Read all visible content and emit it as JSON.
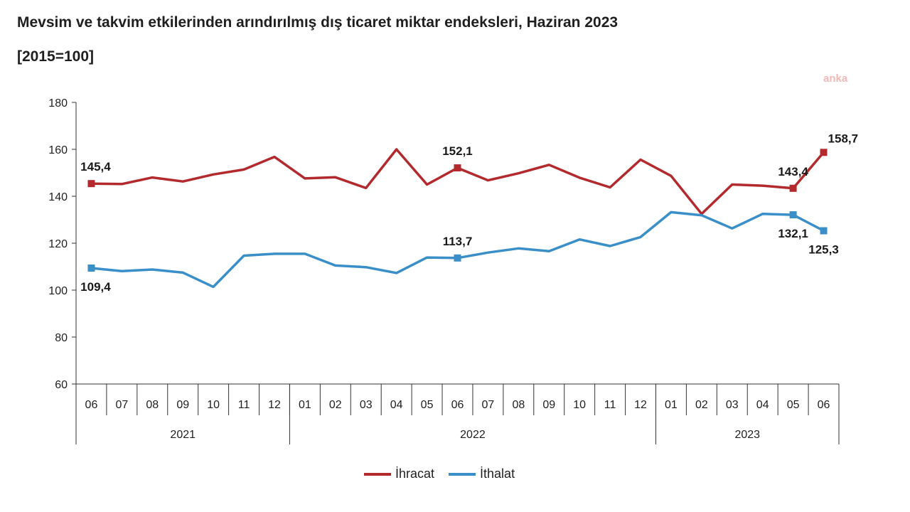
{
  "header": {
    "title": "Mevsim ve takvim etkilerinden arındırılmış dış ticaret miktar endeksleri, Haziran 2023",
    "subtitle": "[2015=100]",
    "watermark": "anka"
  },
  "colors": {
    "ihracat": "#B22A2E",
    "ithalat": "#3A8FC8",
    "axis": "#333333"
  },
  "chart_data": {
    "type": "line",
    "title": "Mevsim ve takvim etkilerinden arındırılmış dış ticaret miktar endeksleri, Haziran 2023",
    "subtitle": "[2015=100]",
    "categories": [
      "06",
      "07",
      "08",
      "09",
      "10",
      "11",
      "12",
      "01",
      "02",
      "03",
      "04",
      "05",
      "06",
      "07",
      "08",
      "09",
      "10",
      "11",
      "12",
      "01",
      "02",
      "03",
      "04",
      "05",
      "06"
    ],
    "year_groups": [
      {
        "label": "2021",
        "start": 0,
        "end": 6
      },
      {
        "label": "2022",
        "start": 7,
        "end": 18
      },
      {
        "label": "2023",
        "start": 19,
        "end": 24
      }
    ],
    "ylim": [
      60,
      180
    ],
    "yticks": [
      60,
      80,
      100,
      120,
      140,
      160,
      180
    ],
    "series": [
      {
        "name": "İhracat",
        "color": "#B22A2E",
        "values": [
          145.4,
          145.2,
          148.0,
          146.3,
          149.3,
          151.4,
          156.8,
          147.6,
          148.1,
          143.5,
          160.0,
          145.0,
          152.1,
          146.8,
          149.8,
          153.4,
          147.9,
          143.8,
          155.6,
          148.7,
          132.5,
          145.0,
          144.5,
          143.4,
          158.7
        ]
      },
      {
        "name": "İthalat",
        "color": "#3A8FC8",
        "values": [
          109.4,
          108.1,
          108.8,
          107.5,
          101.4,
          114.7,
          115.5,
          115.5,
          110.5,
          109.8,
          107.3,
          113.9,
          113.7,
          116.0,
          117.8,
          116.6,
          121.6,
          118.8,
          122.6,
          133.2,
          131.9,
          126.3,
          132.5,
          132.1,
          125.3
        ]
      }
    ],
    "data_labels": [
      {
        "series": 0,
        "index": 0,
        "text": "145,4",
        "pos": "above"
      },
      {
        "series": 0,
        "index": 12,
        "text": "152,1",
        "pos": "above"
      },
      {
        "series": 0,
        "index": 23,
        "text": "143,4",
        "pos": "above"
      },
      {
        "series": 0,
        "index": 24,
        "text": "158,7",
        "pos": "above-right"
      },
      {
        "series": 1,
        "index": 0,
        "text": "109,4",
        "pos": "below"
      },
      {
        "series": 1,
        "index": 12,
        "text": "113,7",
        "pos": "above"
      },
      {
        "series": 1,
        "index": 23,
        "text": "132,1",
        "pos": "below"
      },
      {
        "series": 1,
        "index": 24,
        "text": "125,3",
        "pos": "below"
      }
    ],
    "grid": false,
    "legend": "bottom-center"
  },
  "legend": {
    "ihracat_label": "İhracat",
    "ithalat_label": "İthalat"
  }
}
